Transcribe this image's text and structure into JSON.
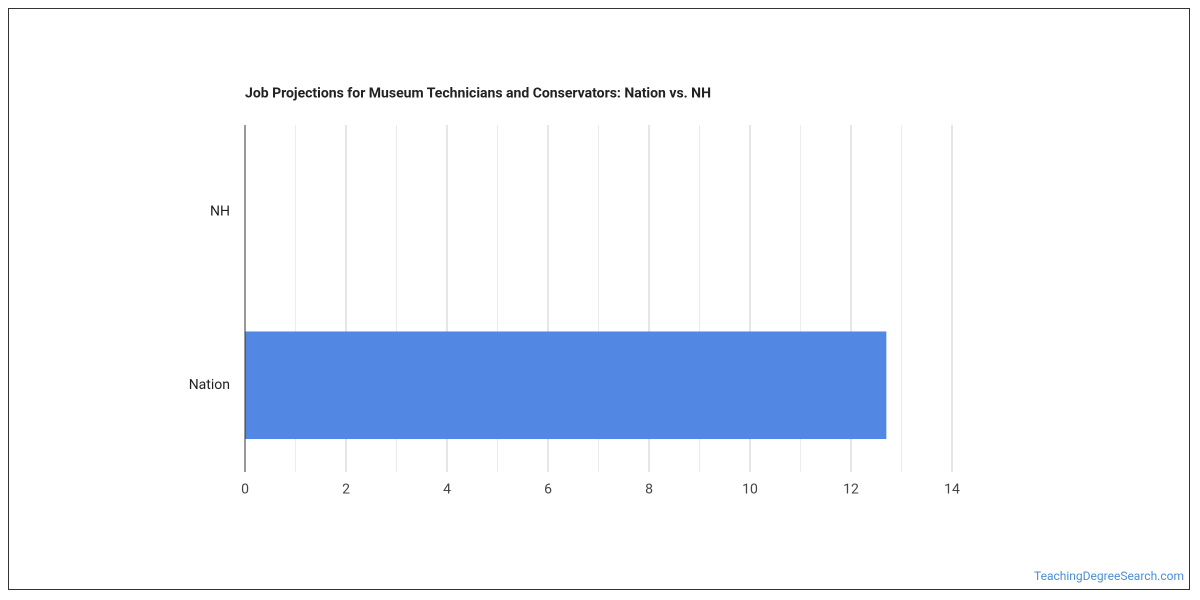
{
  "chart_data": {
    "type": "hbar",
    "title": "Job Projections for Museum Technicians and Conservators: Nation vs. NH",
    "categories": [
      "NH",
      "Nation"
    ],
    "values": [
      0,
      12.7
    ],
    "color": "#5387e4",
    "xlim": [
      0,
      14
    ],
    "xticks": [
      0,
      2,
      4,
      6,
      8,
      10,
      12,
      14
    ],
    "x_minor_ticks": [
      1,
      3,
      5,
      7,
      9,
      11,
      13
    ],
    "grid": true
  },
  "footer": {
    "source": "TeachingDegreeSearch.com"
  }
}
